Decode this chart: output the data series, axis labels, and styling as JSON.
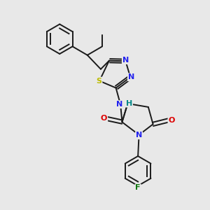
{
  "bg_color": "#e8e8e8",
  "bond_color": "#1a1a1a",
  "atom_colors": {
    "N": "#2222ee",
    "O": "#dd0000",
    "S": "#bbbb00",
    "F": "#117711",
    "H": "#008888",
    "C": "#1a1a1a"
  },
  "figsize": [
    3.0,
    3.0
  ],
  "dpi": 100
}
